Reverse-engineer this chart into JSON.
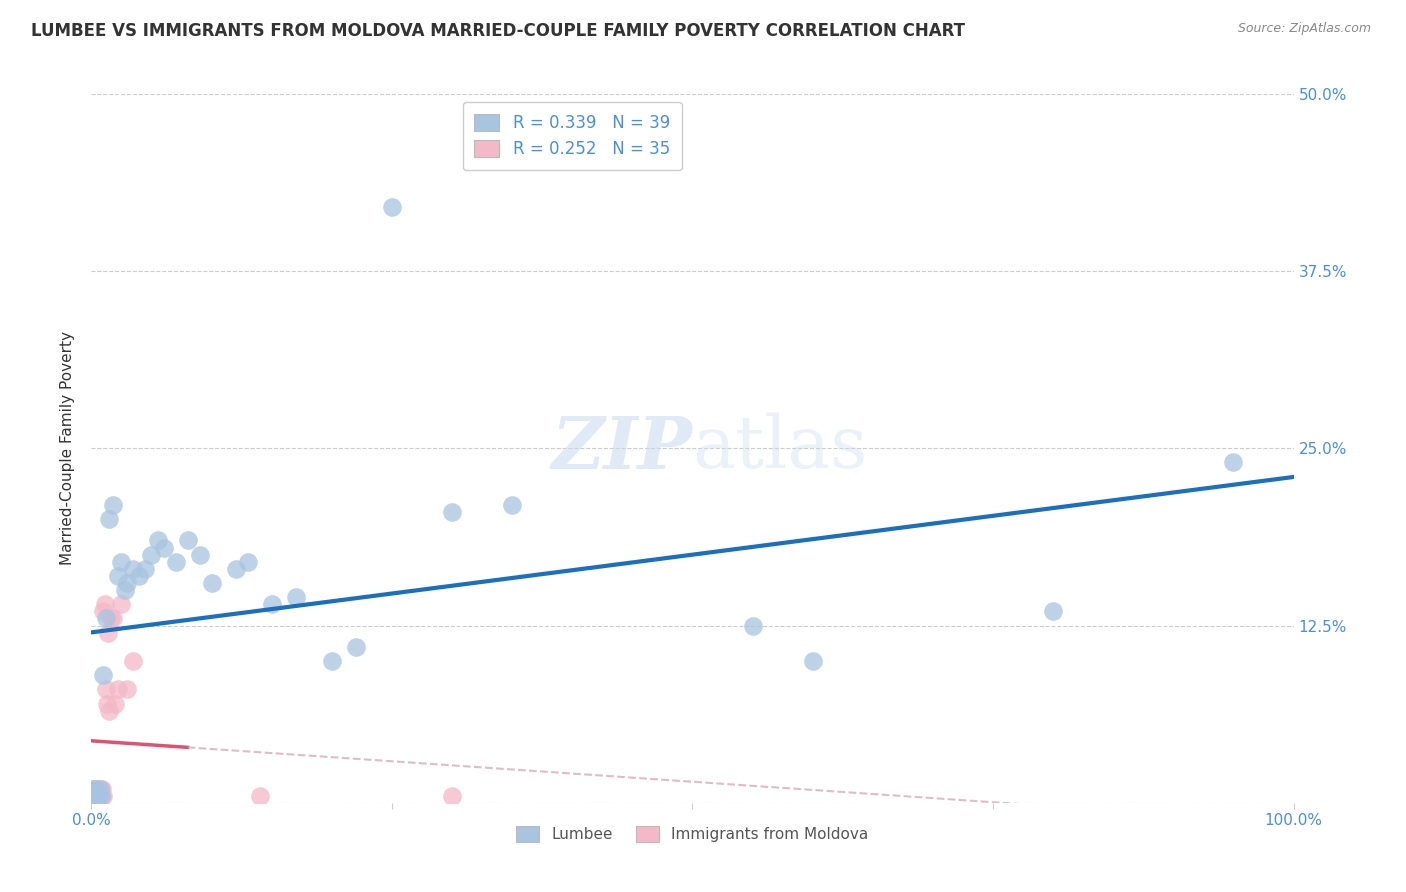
{
  "title": "LUMBEE VS IMMIGRANTS FROM MOLDOVA MARRIED-COUPLE FAMILY POVERTY CORRELATION CHART",
  "source": "Source: ZipAtlas.com",
  "ylabel": "Married-Couple Family Poverty",
  "xlim": [
    0,
    1.0
  ],
  "ylim": [
    0,
    0.5
  ],
  "xticks": [
    0.0,
    0.25,
    0.5,
    0.75,
    1.0
  ],
  "xticklabels": [
    "0.0%",
    "",
    "",
    "",
    "100.0%"
  ],
  "yticks": [
    0.0,
    0.125,
    0.25,
    0.375,
    0.5
  ],
  "yticklabels": [
    "",
    "12.5%",
    "25.0%",
    "37.5%",
    "50.0%"
  ],
  "lumbee_color": "#a8c4e0",
  "moldova_color": "#f4b8c8",
  "lumbee_line_color": "#1a6fbf",
  "moldova_line_color": "#e05070",
  "legend_R_lumbee": "R = 0.339",
  "legend_N_lumbee": "N = 39",
  "legend_R_moldova": "R = 0.252",
  "legend_N_moldova": "N = 35",
  "watermark": "ZIPatlas",
  "lumbee_x": [
    0.001,
    0.002,
    0.003,
    0.004,
    0.005,
    0.006,
    0.007,
    0.008,
    0.01,
    0.012,
    0.015,
    0.018,
    0.022,
    0.025,
    0.028,
    0.03,
    0.035,
    0.04,
    0.045,
    0.05,
    0.055,
    0.06,
    0.07,
    0.08,
    0.09,
    0.1,
    0.12,
    0.13,
    0.15,
    0.17,
    0.2,
    0.22,
    0.25,
    0.3,
    0.35,
    0.55,
    0.6,
    0.8,
    0.95
  ],
  "lumbee_y": [
    0.005,
    0.008,
    0.01,
    0.005,
    0.008,
    0.005,
    0.01,
    0.005,
    0.09,
    0.13,
    0.2,
    0.21,
    0.16,
    0.17,
    0.15,
    0.155,
    0.165,
    0.16,
    0.165,
    0.175,
    0.185,
    0.18,
    0.17,
    0.185,
    0.175,
    0.155,
    0.165,
    0.17,
    0.14,
    0.145,
    0.1,
    0.11,
    0.42,
    0.205,
    0.21,
    0.125,
    0.1,
    0.135,
    0.24
  ],
  "moldova_x": [
    0.0005,
    0.001,
    0.001,
    0.0015,
    0.002,
    0.002,
    0.003,
    0.003,
    0.004,
    0.004,
    0.005,
    0.005,
    0.006,
    0.006,
    0.007,
    0.008,
    0.008,
    0.009,
    0.009,
    0.01,
    0.01,
    0.011,
    0.012,
    0.013,
    0.014,
    0.015,
    0.016,
    0.018,
    0.02,
    0.022,
    0.025,
    0.03,
    0.035,
    0.14,
    0.3
  ],
  "moldova_y": [
    0.0,
    0.005,
    0.01,
    0.005,
    0.005,
    0.01,
    0.005,
    0.01,
    0.005,
    0.01,
    0.005,
    0.01,
    0.005,
    0.01,
    0.005,
    0.005,
    0.01,
    0.005,
    0.01,
    0.005,
    0.135,
    0.14,
    0.08,
    0.07,
    0.12,
    0.065,
    0.13,
    0.13,
    0.07,
    0.08,
    0.14,
    0.08,
    0.1,
    0.005,
    0.005
  ]
}
